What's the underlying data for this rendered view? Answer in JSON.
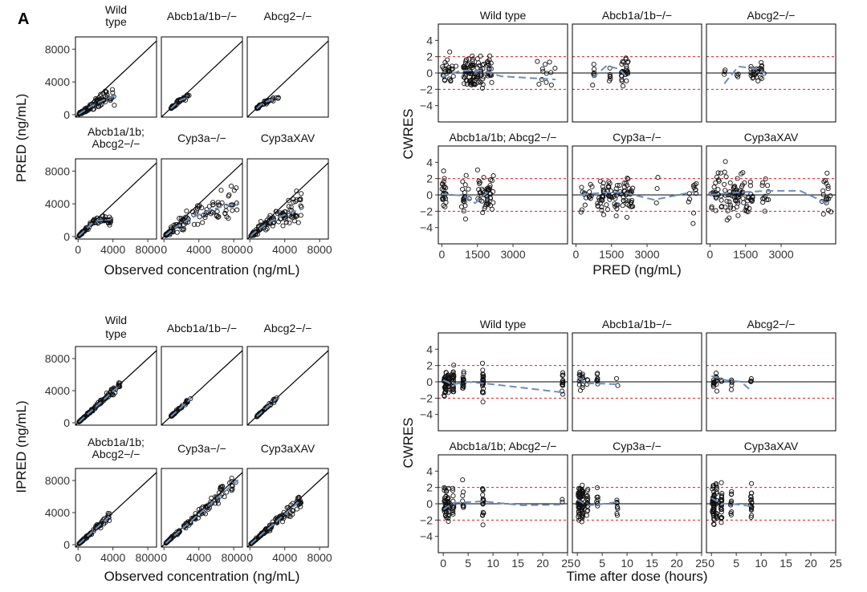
{
  "figure": {
    "panel_letter": "A",
    "colors": {
      "points": "#111111",
      "identity_line": "#000000",
      "loess": "#6c8ebf",
      "reference_lines": "#e41a1c",
      "zero_line": "#000000"
    }
  },
  "chart_data": [
    {
      "id": "pred_vs_obs",
      "type": "scatter",
      "xlabel": "Observed concentration (ng/mL)",
      "ylabel": "PRED (ng/mL)",
      "xlim": [
        -300,
        9000
      ],
      "ylim": [
        -300,
        9500
      ],
      "xticks": [
        0,
        4000,
        8000
      ],
      "yticks": [
        0,
        4000,
        8000
      ],
      "tick_labels": {
        "x": [
          "0",
          "4000",
          "8000"
        ],
        "y": [
          "0",
          "4000",
          "8000"
        ]
      },
      "facets": [
        {
          "label": [
            "Wild",
            "type"
          ],
          "n": 110,
          "obs_range": [
            100,
            4200
          ],
          "curve": {
            "a": 0.9,
            "cap": 4600,
            "k": 6000
          },
          "noise": 0.25
        },
        {
          "label": [
            "Abcb1a/1b−/−"
          ],
          "n": 45,
          "obs_range": [
            800,
            3000
          ],
          "curve": {
            "a": 0.95,
            "cap": 2400,
            "k": 1400
          },
          "noise": 0.08
        },
        {
          "label": [
            "Abcg2−/−"
          ],
          "n": 40,
          "obs_range": [
            800,
            3300
          ],
          "curve": {
            "a": 0.95,
            "cap": 2300,
            "k": 1600
          },
          "noise": 0.08
        },
        {
          "label": [
            "Abcb1a/1b;",
            "Abcg2−/−"
          ],
          "n": 80,
          "obs_range": [
            100,
            3800
          ],
          "curve": {
            "a": 1.0,
            "cap": 2100,
            "k": 900
          },
          "noise": 0.12
        },
        {
          "label": [
            "Cyp3a−/−"
          ],
          "n": 110,
          "obs_range": [
            200,
            8600
          ],
          "curve": {
            "a": 0.9,
            "cap": 5200,
            "k": 5500
          },
          "noise": 0.3
        },
        {
          "label": [
            "Cyp3aXAV"
          ],
          "n": 110,
          "obs_range": [
            100,
            6000
          ],
          "curve": {
            "a": 0.95,
            "cap": 4700,
            "k": 4800
          },
          "noise": 0.3
        }
      ]
    },
    {
      "id": "ipred_vs_obs",
      "type": "scatter",
      "xlabel": "Observed concentration (ng/mL)",
      "ylabel": "IPRED (ng/mL)",
      "xlim": [
        -300,
        9000
      ],
      "ylim": [
        -300,
        9500
      ],
      "xticks": [
        0,
        4000,
        8000
      ],
      "yticks": [
        0,
        4000,
        8000
      ],
      "tick_labels": {
        "x": [
          "0",
          "4000",
          "8000"
        ],
        "y": [
          "0",
          "4000",
          "8000"
        ]
      },
      "facets": [
        {
          "label": [
            "Wild",
            "type"
          ],
          "n": 110,
          "obs_range": [
            100,
            4800
          ],
          "curve": {
            "a": 0.98,
            "cap": 9000,
            "k": 40000
          },
          "noise": 0.06
        },
        {
          "label": [
            "Abcb1a/1b−/−"
          ],
          "n": 45,
          "obs_range": [
            800,
            3100
          ],
          "curve": {
            "a": 0.98,
            "cap": 9000,
            "k": 40000
          },
          "noise": 0.05
        },
        {
          "label": [
            "Abcg2−/−"
          ],
          "n": 40,
          "obs_range": [
            800,
            3100
          ],
          "curve": {
            "a": 0.98,
            "cap": 9000,
            "k": 40000
          },
          "noise": 0.05
        },
        {
          "label": [
            "Abcb1a/1b;",
            "Abcg2−/−"
          ],
          "n": 80,
          "obs_range": [
            100,
            3700
          ],
          "curve": {
            "a": 0.98,
            "cap": 9000,
            "k": 30000
          },
          "noise": 0.08
        },
        {
          "label": [
            "Cyp3a−/−"
          ],
          "n": 110,
          "obs_range": [
            200,
            8500
          ],
          "curve": {
            "a": 0.95,
            "cap": 9000,
            "k": 30000
          },
          "noise": 0.08
        },
        {
          "label": [
            "Cyp3aXAV"
          ],
          "n": 110,
          "obs_range": [
            100,
            6000
          ],
          "curve": {
            "a": 0.95,
            "cap": 9000,
            "k": 30000
          },
          "noise": 0.08
        }
      ]
    },
    {
      "id": "cwres_vs_pred",
      "type": "scatter",
      "xlabel": "PRED (ng/mL)",
      "ylabel": "CWRES",
      "xlim": [
        -150,
        5300
      ],
      "ylim": [
        -6,
        6
      ],
      "xticks": [
        0,
        1500,
        3000
      ],
      "yticks": [
        -4,
        -2,
        0,
        2,
        4
      ],
      "tick_labels": {
        "x": [
          "0",
          "1500",
          "3000"
        ],
        "y": [
          "−4",
          "−2",
          "0",
          "2",
          "4"
        ]
      },
      "reference_lines": [
        -2,
        2
      ],
      "zero_line": 0,
      "facets": [
        {
          "label": "Wild type",
          "n": 140,
          "x_clusters": [
            [
              0,
              600,
              0.2
            ],
            [
              900,
              1800,
              0.5
            ],
            [
              1900,
              2100,
              0.2
            ],
            [
              4000,
              4800,
              0.1
            ]
          ],
          "smooth": [
            [
              0,
              -0.5
            ],
            [
              800,
              0.3
            ],
            [
              1700,
              0.3
            ],
            [
              2500,
              -0.4
            ],
            [
              4800,
              -0.8
            ]
          ],
          "spread": 0.9
        },
        {
          "label": "Abcb1a/1b−/−",
          "n": 40,
          "x_clusters": [
            [
              700,
              800,
              0.15
            ],
            [
              1400,
              1550,
              0.15
            ],
            [
              1900,
              2200,
              0.7
            ]
          ],
          "smooth": [
            [
              700,
              -0.6
            ],
            [
              1300,
              0.9
            ],
            [
              1800,
              0.5
            ],
            [
              2200,
              -0.6
            ]
          ],
          "spread": 0.7
        },
        {
          "label": "Abcg2−/−",
          "n": 35,
          "x_clusters": [
            [
              600,
              700,
              0.1
            ],
            [
              1100,
              1200,
              0.1
            ],
            [
              1700,
              2300,
              0.8
            ]
          ],
          "smooth": [
            [
              600,
              -1.3
            ],
            [
              1200,
              0.8
            ],
            [
              1800,
              0.6
            ],
            [
              2300,
              0
            ]
          ],
          "spread": 0.5
        },
        {
          "label": "Abcb1a/1b; Abcg2−/−",
          "n": 90,
          "x_clusters": [
            [
              0,
              200,
              0.2
            ],
            [
              800,
              1200,
              0.3
            ],
            [
              1500,
              2200,
              0.5
            ]
          ],
          "smooth": [
            [
              0,
              0.1
            ],
            [
              900,
              -0.1
            ],
            [
              1400,
              -1.0
            ],
            [
              2000,
              0.5
            ]
          ],
          "spread": 1.1
        },
        {
          "label": "Cyp3a−/−",
          "n": 120,
          "x_clusters": [
            [
              200,
              700,
              0.1
            ],
            [
              900,
              1500,
              0.25
            ],
            [
              1600,
              2400,
              0.5
            ],
            [
              3200,
              3500,
              0.05
            ],
            [
              4700,
              5100,
              0.1
            ]
          ],
          "smooth": [
            [
              200,
              0
            ],
            [
              1200,
              0.3
            ],
            [
              2000,
              0.3
            ],
            [
              3300,
              -0.6
            ],
            [
              5000,
              0.4
            ]
          ],
          "spread": 1.0
        },
        {
          "label": "Cyp3aXAV",
          "n": 130,
          "x_clusters": [
            [
              0,
              500,
              0.2
            ],
            [
              600,
              1800,
              0.6
            ],
            [
              2200,
              2500,
              0.08
            ],
            [
              4700,
              5100,
              0.12
            ]
          ],
          "smooth": [
            [
              0,
              0
            ],
            [
              1200,
              0.3
            ],
            [
              2400,
              0.5
            ],
            [
              3800,
              0.5
            ],
            [
              5000,
              -1.1
            ]
          ],
          "spread": 1.2
        }
      ]
    },
    {
      "id": "cwres_vs_time",
      "type": "scatter",
      "xlabel": "Time after dose (hours)",
      "ylabel": "CWRES",
      "xlim": [
        -1,
        25
      ],
      "ylim": [
        -6,
        6
      ],
      "xticks": [
        0,
        5,
        10,
        15,
        20,
        25
      ],
      "yticks": [
        -4,
        -2,
        0,
        2,
        4
      ],
      "tick_labels": {
        "x": [
          "0",
          "5",
          "10",
          "15",
          "20",
          "25"
        ],
        "y": [
          "−4",
          "−2",
          "0",
          "2",
          "4"
        ]
      },
      "reference_lines": [
        -2,
        2
      ],
      "zero_line": 0,
      "facets": [
        {
          "label": "Wild type",
          "n": 140,
          "times": [
            0.25,
            0.5,
            1,
            2,
            4,
            8,
            24
          ],
          "weights": [
            0.15,
            0.2,
            0.2,
            0.15,
            0.12,
            0.12,
            0.06
          ],
          "smooth": [
            [
              0,
              0.2
            ],
            [
              2,
              -0.3
            ],
            [
              5,
              0
            ],
            [
              10,
              -0.3
            ],
            [
              24,
              -1.3
            ]
          ],
          "spread": 0.8
        },
        {
          "label": "Abcb1a/1b−/−",
          "n": 30,
          "times": [
            0.5,
            1,
            2,
            4,
            8
          ],
          "weights": [
            0.3,
            0.25,
            0.2,
            0.15,
            0.1
          ],
          "smooth": [
            [
              0,
              0.6
            ],
            [
              2,
              -0.2
            ],
            [
              4,
              -0.2
            ],
            [
              8,
              -0.3
            ]
          ],
          "spread": 0.6
        },
        {
          "label": "Abcg2−/−",
          "n": 30,
          "times": [
            0.5,
            1,
            2,
            4,
            8
          ],
          "weights": [
            0.3,
            0.25,
            0.2,
            0.15,
            0.1
          ],
          "smooth": [
            [
              0,
              0.7
            ],
            [
              3,
              0.2
            ],
            [
              6,
              0
            ],
            [
              8,
              -1.1
            ]
          ],
          "spread": 0.5
        },
        {
          "label": "Abcb1a/1b; Abcg2−/−",
          "n": 90,
          "times": [
            0.25,
            0.5,
            1,
            2,
            4,
            8,
            24
          ],
          "weights": [
            0.15,
            0.2,
            0.2,
            0.15,
            0.12,
            0.12,
            0.06
          ],
          "smooth": [
            [
              0,
              -0.7
            ],
            [
              2,
              0.1
            ],
            [
              8,
              0.3
            ],
            [
              16,
              -0.2
            ],
            [
              24,
              -0.1
            ]
          ],
          "spread": 1.1
        },
        {
          "label": "Cyp3a−/−",
          "n": 110,
          "times": [
            0.25,
            0.5,
            1,
            2,
            4,
            8
          ],
          "weights": [
            0.2,
            0.25,
            0.2,
            0.15,
            0.1,
            0.1
          ],
          "smooth": [
            [
              0,
              0.5
            ],
            [
              2,
              -0.2
            ],
            [
              4,
              -0.1
            ],
            [
              8,
              0.2
            ]
          ],
          "spread": 0.9
        },
        {
          "label": "Cyp3aXAV",
          "n": 120,
          "times": [
            0.25,
            0.5,
            1,
            2,
            4,
            8
          ],
          "weights": [
            0.2,
            0.25,
            0.2,
            0.15,
            0.1,
            0.1
          ],
          "smooth": [
            [
              0,
              0.7
            ],
            [
              2,
              0
            ],
            [
              4,
              0
            ],
            [
              8,
              -0.3
            ]
          ],
          "spread": 1.2
        }
      ]
    }
  ]
}
